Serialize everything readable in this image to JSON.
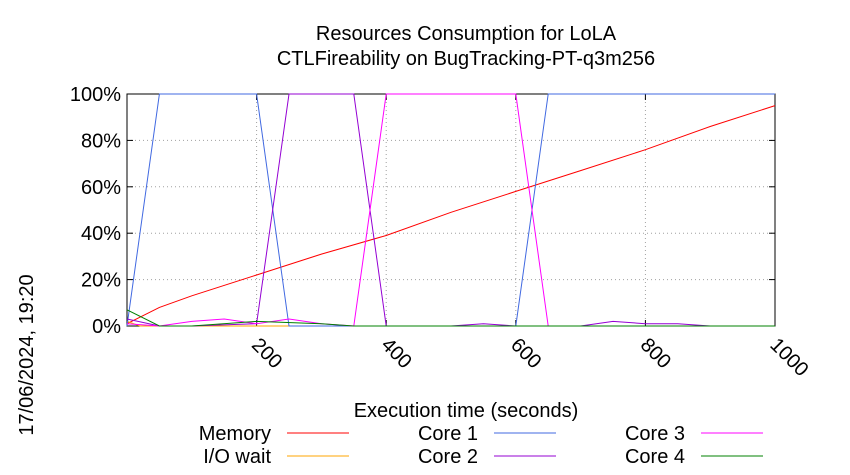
{
  "chart_data": {
    "type": "line",
    "title": "Resources Consumption for LoLA",
    "subtitle": "CTLFireability on BugTracking-PT-q3m256",
    "xlabel": "Execution time (seconds)",
    "ylabel": "",
    "xlim": [
      0,
      1000
    ],
    "ylim": [
      0,
      100
    ],
    "x_ticks": [
      "200",
      "400",
      "600",
      "800",
      "1000"
    ],
    "y_ticks": [
      "0%",
      "20%",
      "40%",
      "60%",
      "80%",
      "100%"
    ],
    "grid": true,
    "legend_position": "bottom",
    "timestamp": "17/06/2024, 19:20",
    "series": [
      {
        "name": "Memory",
        "color": "#ff0000",
        "points": [
          [
            0,
            1
          ],
          [
            50,
            8
          ],
          [
            100,
            13
          ],
          [
            200,
            22
          ],
          [
            300,
            31
          ],
          [
            400,
            39
          ],
          [
            500,
            49
          ],
          [
            600,
            58
          ],
          [
            700,
            67
          ],
          [
            800,
            76
          ],
          [
            900,
            86
          ],
          [
            1000,
            95
          ]
        ]
      },
      {
        "name": "I/O wait",
        "color": "#ffa500",
        "points": [
          [
            0,
            2
          ],
          [
            20,
            0
          ],
          [
            1000,
            0
          ]
        ]
      },
      {
        "name": "Core 1",
        "color": "#4169e1",
        "points": [
          [
            0,
            0
          ],
          [
            50,
            100
          ],
          [
            200,
            100
          ],
          [
            250,
            0
          ],
          [
            600,
            0
          ],
          [
            650,
            100
          ],
          [
            1000,
            100
          ]
        ]
      },
      {
        "name": "Core 2",
        "color": "#9400d3",
        "points": [
          [
            0,
            3
          ],
          [
            50,
            0
          ],
          [
            100,
            0
          ],
          [
            200,
            1
          ],
          [
            250,
            100
          ],
          [
            350,
            100
          ],
          [
            400,
            0
          ],
          [
            500,
            0
          ],
          [
            550,
            1
          ],
          [
            600,
            0
          ],
          [
            700,
            0
          ],
          [
            750,
            2
          ],
          [
            800,
            1
          ],
          [
            850,
            1
          ],
          [
            900,
            0
          ],
          [
            1000,
            0
          ]
        ]
      },
      {
        "name": "Core 3",
        "color": "#ff00ff",
        "points": [
          [
            0,
            1
          ],
          [
            50,
            0
          ],
          [
            100,
            2
          ],
          [
            150,
            3
          ],
          [
            200,
            1
          ],
          [
            250,
            3
          ],
          [
            300,
            1
          ],
          [
            350,
            0
          ],
          [
            400,
            100
          ],
          [
            600,
            100
          ],
          [
            650,
            0
          ],
          [
            1000,
            0
          ]
        ]
      },
      {
        "name": "Core 4",
        "color": "#008000",
        "points": [
          [
            0,
            7
          ],
          [
            50,
            0
          ],
          [
            100,
            0
          ],
          [
            200,
            2
          ],
          [
            300,
            1
          ],
          [
            350,
            0
          ],
          [
            1000,
            0
          ]
        ]
      }
    ]
  }
}
